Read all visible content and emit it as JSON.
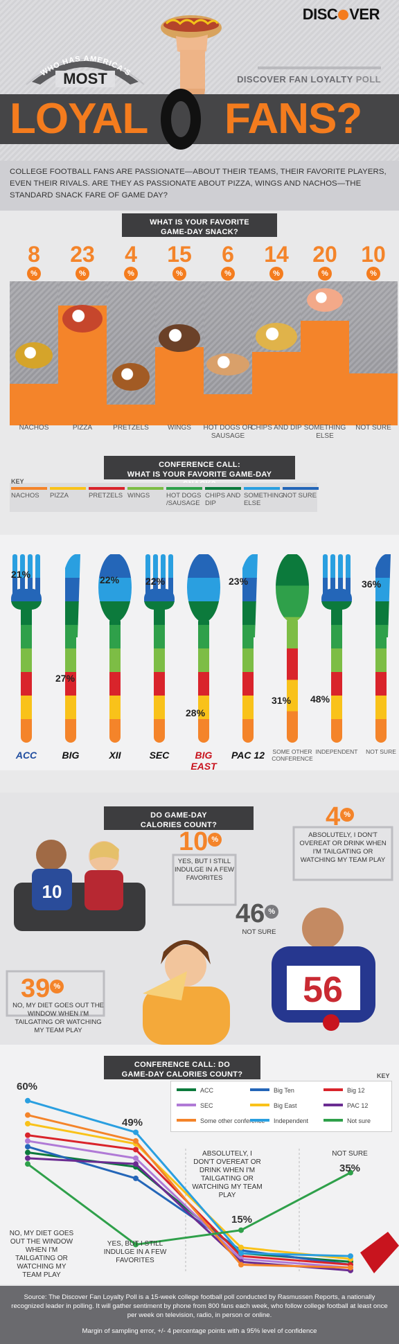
{
  "brand": {
    "name_before": "DISC",
    "name_after": "VER"
  },
  "header": {
    "arc_line1": "WHO HAS AMERICA'S",
    "arc_line2": "MOST",
    "title_left": "LOYAL",
    "title_right": "FANS?",
    "poll_brand": "DISCOVER FAN LOYALTY",
    "poll_word": "POLL"
  },
  "intro": "COLLEGE FOOTBALL FANS ARE PASSIONATE—ABOUT THEIR TEAMS, THEIR FAVORITE PLAYERS, EVEN THEIR RIVALS. ARE THEY AS PASSIONATE ABOUT PIZZA, WINGS AND NACHOS—THE STANDARD SNACK FARE OF GAME DAY?",
  "snack_question": {
    "line1": "WHAT IS YOUR FAVORITE",
    "line2": "GAME-DAY SNACK?"
  },
  "percent_sign": "%",
  "chart_data": [
    {
      "type": "bar",
      "title": "WHAT IS YOUR FAVORITE GAME-DAY SNACK?",
      "categories": [
        "NACHOS",
        "PIZZA",
        "PRETZELS",
        "WINGS",
        "HOT DOGS OR SAUSAGE",
        "CHIPS AND DIP",
        "SOMETHING ELSE",
        "NOT SURE"
      ],
      "values": [
        8,
        23,
        4,
        15,
        6,
        14,
        20,
        10
      ],
      "ylim": [
        0,
        40
      ]
    },
    {
      "type": "bar",
      "title": "CONFERENCE CALL: WHAT IS YOUR FAVORITE GAME-DAY SNACK?",
      "categories": [
        "ACC",
        "Big Ten",
        "Big 12",
        "SEC",
        "Big East",
        "PAC 12",
        "SOME OTHER CONFERENCE",
        "INDEPENDENT",
        "NOT SURE"
      ],
      "highlighted_values": [
        "21%",
        "27%",
        "22%",
        "22%",
        "28%",
        "23%",
        "31%",
        "48%",
        "36%"
      ]
    },
    {
      "type": "pie",
      "title": "DO GAME-DAY CALORIES COUNT?",
      "categories": [
        "NO, MY DIET GOES OUT THE WINDOW WHEN I'M TAILGATING OR WATCHING MY TEAM PLAY",
        "YES, BUT I STILL INDULGE IN A FEW FAVORITES",
        "NOT SURE",
        "ABSOLUTELY, I DON'T OVEREAT OR DRINK WHEN I'M TAILGATING OR WATCHING MY TEAM PLAY"
      ],
      "values": [
        39,
        10,
        46,
        4
      ]
    },
    {
      "type": "line",
      "title": "CONFERENCE CALL: DO GAME-DAY CALORIES COUNT?",
      "categories": [
        "NO, MY DIET GOES OUT THE WINDOW WHEN I'M TAILGATING OR WATCHING MY TEAM PLAY",
        "YES, BUT I STILL INDULGE IN A FEW FAVORITES",
        "ABSOLUTELY, I DON'T OVEREAT OR DRINK WHEN I'M TAILGATING OR WATCHING MY TEAM PLAY",
        "NOT SURE"
      ],
      "labeled_values": [
        "60%",
        "49%",
        "15%",
        "35%"
      ],
      "ylim": [
        0,
        65
      ],
      "series": [
        {
          "name": "ACC",
          "values": [
            42,
            37,
            7,
            4
          ]
        },
        {
          "name": "Big Ten",
          "values": [
            44,
            33,
            8,
            3
          ]
        },
        {
          "name": "Big 12",
          "values": [
            48,
            43,
            6,
            3
          ]
        },
        {
          "name": "SEC",
          "values": [
            46,
            40,
            5,
            2
          ]
        },
        {
          "name": "Big East",
          "values": [
            52,
            45,
            9,
            5
          ]
        },
        {
          "name": "PAC 12",
          "values": [
            40,
            38,
            4,
            1
          ]
        },
        {
          "name": "Some other conference",
          "values": [
            55,
            46,
            3,
            2
          ]
        },
        {
          "name": "Independent",
          "values": [
            60,
            49,
            7,
            6
          ]
        },
        {
          "name": "Not sure",
          "values": [
            38,
            10,
            15,
            35
          ]
        }
      ]
    }
  ],
  "snacks": [
    {
      "pct": "8",
      "label": "NACHOS",
      "value": 8
    },
    {
      "pct": "23",
      "label": "PIZZA",
      "value": 23
    },
    {
      "pct": "4",
      "label": "PRETZELS",
      "value": 4
    },
    {
      "pct": "15",
      "label": "WINGS",
      "value": 15
    },
    {
      "pct": "6",
      "label": "HOT DOGS OR SAUSAGE",
      "value": 6
    },
    {
      "pct": "14",
      "label": "CHIPS AND DIP",
      "value": 14
    },
    {
      "pct": "20",
      "label": "SOMETHING ELSE",
      "value": 20
    },
    {
      "pct": "10",
      "label": "NOT SURE",
      "value": 10
    }
  ],
  "conference_question": {
    "line1": "CONFERENCE CALL:",
    "line2": "WHAT IS YOUR FAVORITE GAME-DAY SNACK?"
  },
  "key": {
    "title": "KEY",
    "items": [
      {
        "label": "NACHOS",
        "color": "#f4842a"
      },
      {
        "label": "PIZZA",
        "color": "#f9c21a"
      },
      {
        "label": "PRETZELS",
        "color": "#d9242b"
      },
      {
        "label": "WINGS",
        "color": "#7dbd45"
      },
      {
        "label": "HOT DOGS /SAUSAGE",
        "color": "#2fa04a"
      },
      {
        "label": "CHIPS AND DIP",
        "color": "#0c7a3c"
      },
      {
        "label": "SOMETHING ELSE",
        "color": "#2a9fe0"
      },
      {
        "label": "NOT SURE",
        "color": "#2466b8"
      }
    ]
  },
  "utensils": [
    {
      "pct": "21%",
      "logo": "ACC"
    },
    {
      "pct": "27%",
      "logo": "BIG"
    },
    {
      "pct": "22%",
      "logo": "XII"
    },
    {
      "pct": "22%",
      "logo": "SEC"
    },
    {
      "pct": "28%",
      "logo": "BIG EAST"
    },
    {
      "pct": "23%",
      "logo": "PAC 12"
    },
    {
      "pct": "31%",
      "label": "SOME OTHER CONFERENCE"
    },
    {
      "pct": "48%",
      "label": "INDEPENDENT"
    },
    {
      "pct": "36%",
      "label": "NOT SURE"
    }
  ],
  "calories_question": {
    "line1": "DO GAME-DAY",
    "line2": "CALORIES COUNT?"
  },
  "calories": {
    "no": {
      "pct": "39",
      "text": "NO, MY DIET GOES OUT THE WINDOW WHEN I'M TAILGATING OR WATCHING MY TEAM PLAY"
    },
    "yes": {
      "pct": "10",
      "text": "YES, BUT I STILL INDULGE IN A FEW FAVORITES"
    },
    "notsure": {
      "pct": "46",
      "text": "NOT SURE"
    },
    "absolutely": {
      "pct": "4",
      "text": "ABSOLUTELY, I DON'T OVEREAT OR DRINK WHEN I'M TAILGATING OR WATCHING MY TEAM PLAY"
    },
    "jersey1": "10",
    "jersey2": "56"
  },
  "line_question": {
    "line1": "CONFERENCE CALL: DO",
    "line2": "GAME-DAY CALORIES COUNT?"
  },
  "line_key": {
    "title": "KEY",
    "items": [
      {
        "label": "ACC",
        "color": "#0c7a3c"
      },
      {
        "label": "Big Ten",
        "color": "#2466b8"
      },
      {
        "label": "Big 12",
        "color": "#d9242b"
      },
      {
        "label": "SEC",
        "color": "#b07ad6"
      },
      {
        "label": "Big East",
        "color": "#f9c21a"
      },
      {
        "label": "PAC 12",
        "color": "#6a2c91"
      },
      {
        "label": "Some other conference",
        "color": "#f4842a"
      },
      {
        "label": "Independent",
        "color": "#2a9fe0"
      },
      {
        "label": "Not sure",
        "color": "#2fa04a"
      }
    ]
  },
  "line_labels": {
    "no": "NO, MY DIET GOES OUT THE WINDOW WHEN I'M TAILGATING OR WATCHING MY TEAM PLAY",
    "yes": "YES, BUT I STILL INDULGE IN A FEW FAVORITES",
    "absolutely": "ABSOLUTELY, I DON'T OVEREAT OR DRINK WHEN I'M TAILGATING OR WATCHING MY TEAM PLAY",
    "notsure": "NOT SURE",
    "p60": "60%",
    "p49": "49%",
    "p15": "15%",
    "p35": "35%"
  },
  "footer": {
    "source": "Source: The Discover Fan Loyalty Poll is a 15-week college football poll conducted by Rasmussen Reports, a nationally recognized leader in polling. It will gather sentiment by phone from 800 fans each week, who follow college football at least once per week on television, radio, in person or online.",
    "margin": "Margin of sampling error, +/- 4 percentage points with a 95% level of confidence"
  }
}
